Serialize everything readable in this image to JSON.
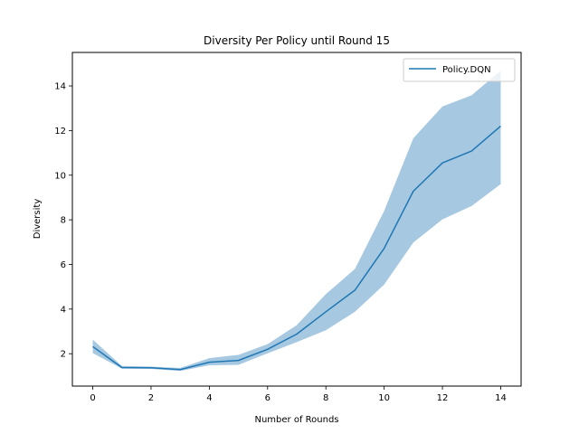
{
  "chart_data": {
    "type": "line",
    "title": "Diversity Per Policy until Round 15",
    "xlabel": "Number of Rounds",
    "ylabel": "Diversity",
    "xlim": [
      -0.7,
      14.7
    ],
    "ylim": [
      0.55,
      15.5
    ],
    "xticks": [
      0,
      2,
      4,
      6,
      8,
      10,
      12,
      14
    ],
    "yticks": [
      2,
      4,
      6,
      8,
      10,
      12,
      14
    ],
    "grid": false,
    "legend_position": "top-right",
    "series": [
      {
        "name": "Policy.DQN",
        "color": "#1f77b4",
        "band_color": "#a6c8e1",
        "x": [
          0,
          1,
          2,
          3,
          4,
          5,
          6,
          7,
          8,
          9,
          10,
          11,
          12,
          13,
          14
        ],
        "y": [
          2.32,
          1.38,
          1.37,
          1.29,
          1.62,
          1.7,
          2.2,
          2.88,
          3.88,
          4.85,
          6.72,
          9.28,
          10.55,
          11.08,
          12.2
        ],
        "lower": [
          2.03,
          1.33,
          1.32,
          1.23,
          1.48,
          1.5,
          2.02,
          2.52,
          3.05,
          3.88,
          5.1,
          6.98,
          8.02,
          8.62,
          9.6
        ],
        "upper": [
          2.63,
          1.45,
          1.42,
          1.36,
          1.8,
          1.95,
          2.43,
          3.28,
          4.67,
          5.8,
          8.4,
          11.65,
          13.08,
          13.58,
          14.68
        ]
      }
    ]
  }
}
